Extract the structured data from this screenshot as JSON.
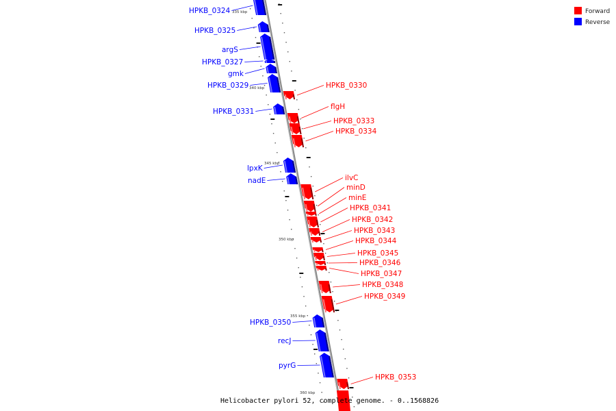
{
  "caption": "Helicobacter pylori 52, complete genome. - 0..1568826",
  "legend": [
    {
      "label": "Forward",
      "color": "#ff0000"
    },
    {
      "label": "Reverse",
      "color": "#0000ff"
    }
  ],
  "colors": {
    "forward": "#ff0000",
    "reverse": "#0000ff",
    "axis": "#888888"
  },
  "scale_labels": [
    "335 kbp",
    "340 kbp",
    "345 kbp",
    "350 kbp",
    "355 kbp",
    "360 kbp"
  ],
  "genes_reverse": [
    {
      "name": "HPKB_0324"
    },
    {
      "name": "HPKB_0325"
    },
    {
      "name": "argS"
    },
    {
      "name": "HPKB_0327"
    },
    {
      "name": "gmk"
    },
    {
      "name": "HPKB_0329"
    },
    {
      "name": "HPKB_0331"
    },
    {
      "name": "lpxK"
    },
    {
      "name": "nadE"
    },
    {
      "name": "HPKB_0350"
    },
    {
      "name": "recJ"
    },
    {
      "name": "pyrG"
    }
  ],
  "genes_forward": [
    {
      "name": "HPKB_0330"
    },
    {
      "name": "flgH"
    },
    {
      "name": "HPKB_0333"
    },
    {
      "name": "HPKB_0334"
    },
    {
      "name": "ilvC"
    },
    {
      "name": "minD"
    },
    {
      "name": "minE"
    },
    {
      "name": "HPKB_0341"
    },
    {
      "name": "HPKB_0342"
    },
    {
      "name": "HPKB_0343"
    },
    {
      "name": "HPKB_0344"
    },
    {
      "name": "HPKB_0345"
    },
    {
      "name": "HPKB_0346"
    },
    {
      "name": "HPKB_0347"
    },
    {
      "name": "HPKB_0348"
    },
    {
      "name": "HPKB_0349"
    },
    {
      "name": "HPKB_0353"
    }
  ]
}
